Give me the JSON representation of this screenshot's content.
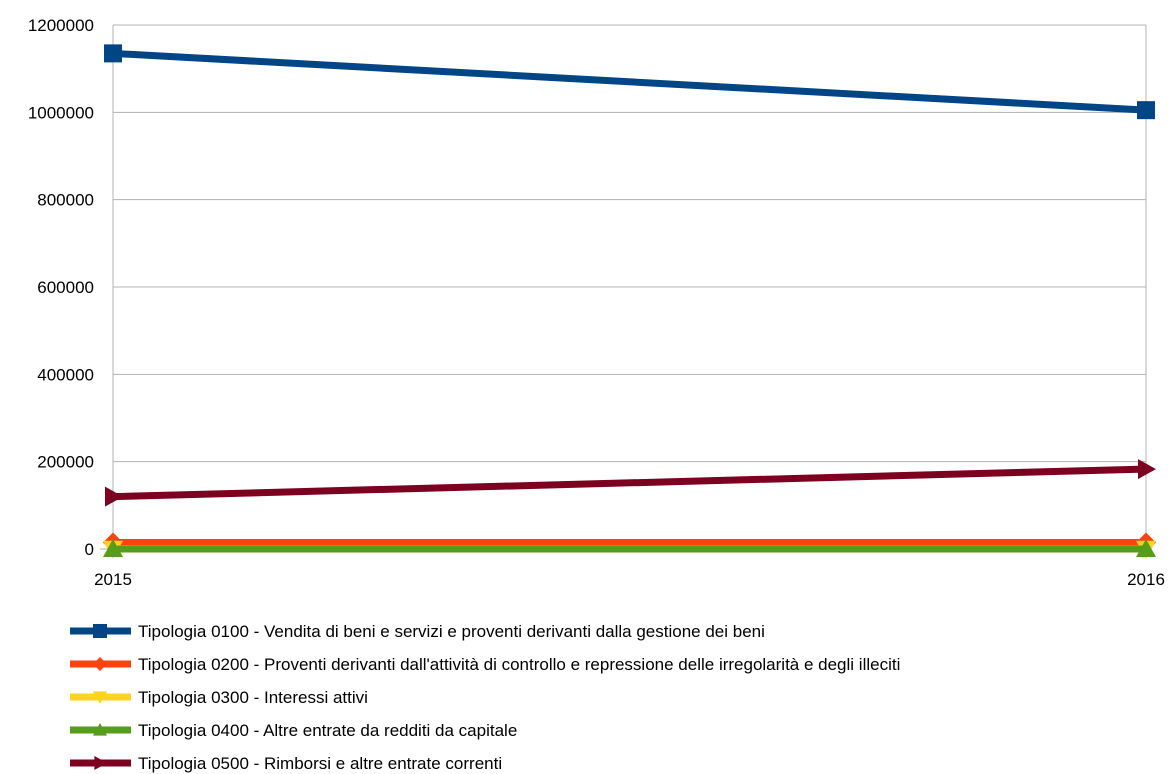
{
  "chart_data": {
    "type": "line",
    "title": "",
    "xlabel": "",
    "ylabel": "",
    "x": [
      "2015",
      "2016"
    ],
    "ylim": [
      0,
      1200000
    ],
    "y_ticks": [
      "0",
      "200000",
      "400000",
      "600000",
      "800000",
      "1000000",
      "1200000"
    ],
    "grid": true,
    "legend_position": "bottom",
    "series": [
      {
        "name": "Tipologia 0100 - Vendita di beni e servizi e proventi derivanti dalla gestione dei beni",
        "values": [
          1135000,
          1005000
        ],
        "color": "#004586",
        "marker": "square"
      },
      {
        "name": "Tipologia 0200 - Proventi derivanti dall'attività di controllo e repressione delle irregolarità e degli illeciti",
        "values": [
          15000,
          15000
        ],
        "color": "#ff420e",
        "marker": "diamond"
      },
      {
        "name": "Tipologia 0300 - Interessi attivi",
        "values": [
          500,
          500
        ],
        "color": "#ffd320",
        "marker": "triangle-down"
      },
      {
        "name": "Tipologia 0400 - Altre entrate da redditi da capitale",
        "values": [
          0,
          0
        ],
        "color": "#579d1c",
        "marker": "triangle-up"
      },
      {
        "name": "Tipologia 0500 - Rimborsi e altre entrate correnti",
        "values": [
          120000,
          183000
        ],
        "color": "#7e0021",
        "marker": "triangle-right"
      }
    ]
  }
}
